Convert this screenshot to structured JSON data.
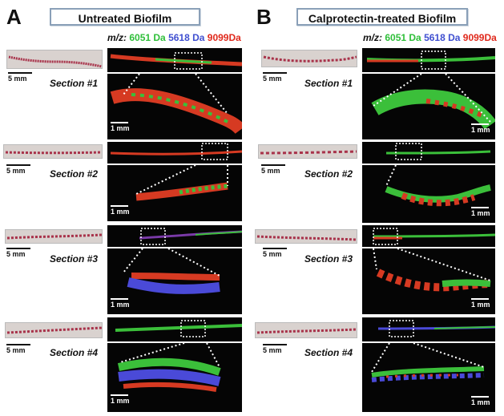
{
  "panel_a": {
    "letter": "A",
    "title": "Untreated Biofilm"
  },
  "panel_b": {
    "letter": "B",
    "title": "Calprotectin-treated Biofilm"
  },
  "legend": {
    "prefix": "m/z:",
    "mz1": "6051 Da",
    "mz2": "5618 Da",
    "mz3": "9099Da",
    "color_green": "#2fbf3a",
    "color_blue": "#3f4fd0",
    "color_red": "#e02a1d"
  },
  "sections": [
    "Section #1",
    "Section #2",
    "Section #3",
    "Section #4"
  ],
  "scale": {
    "strip": "5 mm",
    "zoom": "1 mm"
  }
}
